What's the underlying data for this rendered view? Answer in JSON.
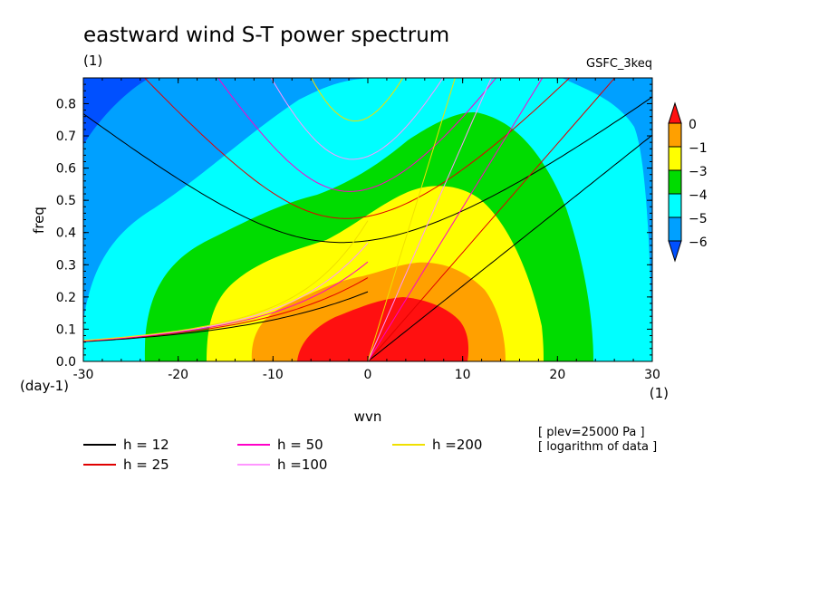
{
  "chart_data": {
    "type": "heatmap",
    "title": "eastward wind S-T power spectrum",
    "subtitle_left": "(1)",
    "subtitle_right": "GSFC_3keq",
    "xlabel": "wvn",
    "ylabel": "freq",
    "x_unit": "(1)",
    "y_unit": "(day-1)",
    "xlim": [
      -30,
      30
    ],
    "ylim": [
      0,
      0.88
    ],
    "xticks": [
      -30,
      -20,
      -10,
      0,
      10,
      20,
      30
    ],
    "yticks": [
      0.0,
      0.1,
      0.2,
      0.3,
      0.4,
      0.5,
      0.6,
      0.7,
      0.8
    ],
    "ytick_labels": [
      "0.0",
      "0.1",
      "0.2",
      "0.3",
      "0.4",
      "0.5",
      "0.6",
      "0.7",
      "0.8"
    ],
    "colorbar": {
      "levels": [
        0,
        -1,
        -3,
        -4,
        -5,
        -6
      ],
      "labels": [
        "0",
        "−1",
        "−3",
        "−4",
        "−5",
        "−6"
      ],
      "colors": [
        "#0050ff",
        "#00a0ff",
        "#00ffff",
        "#00dc00",
        "#ffff00",
        "#ffa000",
        "#ff1010"
      ]
    },
    "contour_bands": [
      {
        "level": "above 0",
        "color": "#ff1010",
        "peak_wvn": 4,
        "peak_freq": 0.0
      },
      {
        "level": "-1 to 0",
        "color": "#ffa000"
      },
      {
        "level": "-3 to -1",
        "color": "#ffff00"
      },
      {
        "level": "-4 to -3",
        "color": "#00dc00"
      },
      {
        "level": "-5 to -4",
        "color": "#00ffff"
      },
      {
        "level": "-6 to -5",
        "color": "#00a0ff"
      },
      {
        "level": "below -6",
        "color": "#0050ff"
      }
    ],
    "dispersion_curves": [
      {
        "name": "h = 12",
        "h": 12,
        "color": "#000000"
      },
      {
        "name": "h = 25",
        "h": 25,
        "color": "#e00000"
      },
      {
        "name": "h = 50",
        "h": 50,
        "color": "#ff00c8"
      },
      {
        "name": "h =100",
        "h": 100,
        "color": "#ff96ff"
      },
      {
        "name": "h =200",
        "h": 200,
        "color": "#f0e000"
      }
    ],
    "annotations": [
      "[ plev=25000 Pa ]",
      "[ logarithm of data ]"
    ]
  }
}
